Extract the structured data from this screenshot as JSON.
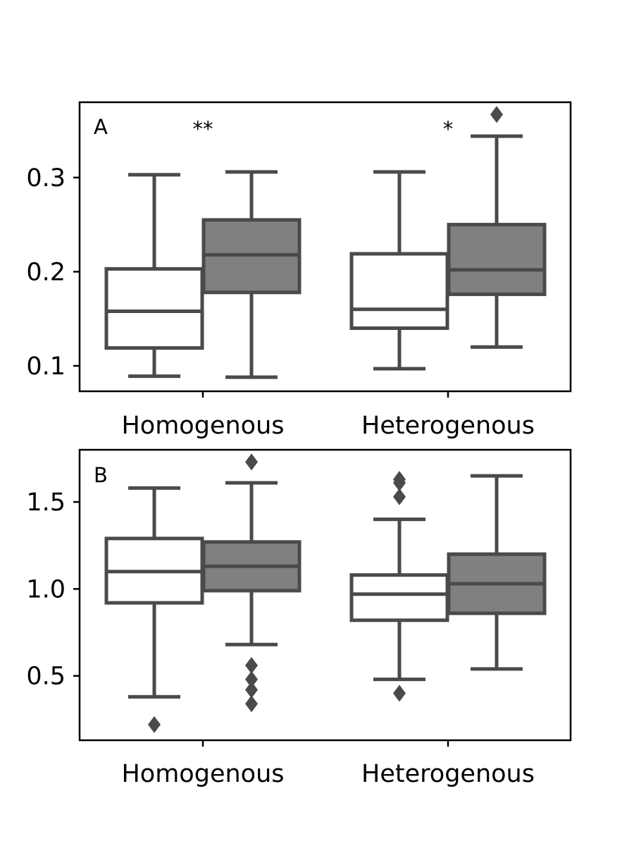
{
  "chart_data": [
    {
      "type": "box",
      "panel_label": "A",
      "categories": [
        "Homogenous",
        "Heterogenous"
      ],
      "ylim": [
        0.073,
        0.38
      ],
      "yticks": [
        0.1,
        0.2,
        0.3
      ],
      "ytick_labels": [
        "0.1",
        "0.2",
        "0.3"
      ],
      "significance": [
        "**",
        "*"
      ],
      "series": [
        {
          "fill": "#ffffff",
          "boxes": [
            {
              "whislo": 0.089,
              "q1": 0.119,
              "med": 0.158,
              "q3": 0.203,
              "whishi": 0.303,
              "fliers": []
            },
            {
              "whislo": 0.097,
              "q1": 0.14,
              "med": 0.16,
              "q3": 0.219,
              "whishi": 0.306,
              "fliers": []
            }
          ]
        },
        {
          "fill": "#808080",
          "boxes": [
            {
              "whislo": 0.088,
              "q1": 0.178,
              "med": 0.218,
              "q3": 0.255,
              "whishi": 0.306,
              "fliers": []
            },
            {
              "whislo": 0.12,
              "q1": 0.176,
              "med": 0.202,
              "q3": 0.25,
              "whishi": 0.344,
              "fliers": [
                0.367
              ]
            }
          ]
        }
      ]
    },
    {
      "type": "box",
      "panel_label": "B",
      "categories": [
        "Homogenous",
        "Heterogenous"
      ],
      "ylim": [
        0.13,
        1.8
      ],
      "yticks": [
        0.5,
        1.0,
        1.5
      ],
      "ytick_labels": [
        "0.5",
        "1.0",
        "1.5"
      ],
      "significance": [],
      "series": [
        {
          "fill": "#ffffff",
          "boxes": [
            {
              "whislo": 0.38,
              "q1": 0.92,
              "med": 1.1,
              "q3": 1.29,
              "whishi": 1.58,
              "fliers": [
                0.22
              ]
            },
            {
              "whislo": 0.48,
              "q1": 0.82,
              "med": 0.97,
              "q3": 1.08,
              "whishi": 1.4,
              "fliers": [
                0.4,
                1.53,
                1.61,
                1.63
              ]
            }
          ]
        },
        {
          "fill": "#808080",
          "boxes": [
            {
              "whislo": 0.68,
              "q1": 0.99,
              "med": 1.13,
              "q3": 1.27,
              "whishi": 1.61,
              "fliers": [
                0.34,
                0.42,
                0.48,
                0.56,
                1.73
              ]
            },
            {
              "whislo": 0.54,
              "q1": 0.86,
              "med": 1.03,
              "q3": 1.2,
              "whishi": 1.65,
              "fliers": []
            }
          ]
        }
      ]
    }
  ],
  "colors": {
    "line": "#4a4a4a",
    "frame": "#000000",
    "background": "#ffffff"
  }
}
